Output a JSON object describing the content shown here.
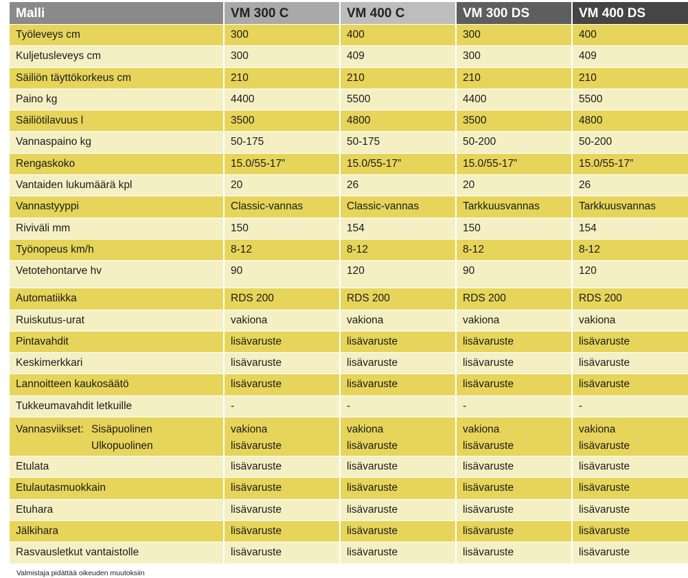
{
  "header": [
    "Malli",
    "VM 300 C",
    "VM 400 C",
    "VM 300 DS",
    "VM 400 DS"
  ],
  "rows": [
    {
      "label": "Työleveys cm",
      "values": [
        "300",
        "400",
        "300",
        "400"
      ]
    },
    {
      "label": "Kuljetusleveys cm",
      "values": [
        "300",
        "409",
        "300",
        "409"
      ]
    },
    {
      "label": "Säiliön täyttökorkeus cm",
      "values": [
        "210",
        "210",
        "210",
        "210"
      ]
    },
    {
      "label": "Paino kg",
      "values": [
        "4400",
        "5500",
        "4400",
        "5500"
      ]
    },
    {
      "label": "Säiliötilavuus l",
      "values": [
        "3500",
        "4800",
        "3500",
        "4800"
      ]
    },
    {
      "label": "Vannaspaino kg",
      "values": [
        "50-175",
        "50-175",
        "50-200",
        "50-200"
      ]
    },
    {
      "label": "Rengaskoko",
      "values": [
        "15.0/55-17”",
        "15.0/55-17”",
        "15.0/55-17”",
        "15.0/55-17”"
      ]
    },
    {
      "label": "Vantaiden lukumäärä kpl",
      "values": [
        "20",
        "26",
        "20",
        "26"
      ]
    },
    {
      "label": "Vannastyyppi",
      "values": [
        "Classic-vannas",
        "Classic-vannas",
        "Tarkkuusvannas",
        "Tarkkuusvannas"
      ]
    },
    {
      "label": "Riviväli mm",
      "values": [
        "150",
        "154",
        "150",
        "154"
      ]
    },
    {
      "label": "Työnopeus km/h",
      "values": [
        "8-12",
        "8-12",
        "8-12",
        "8-12"
      ]
    },
    {
      "label": "Vetotehontarve hv",
      "values": [
        "90",
        "120",
        "90",
        "120"
      ]
    },
    {
      "label": "Automatiikka",
      "values": [
        "RDS 200",
        "RDS 200",
        "RDS 200",
        "RDS 200"
      ]
    },
    {
      "label": "Ruiskutus-urat",
      "values": [
        "vakiona",
        "vakiona",
        "vakiona",
        "vakiona"
      ]
    },
    {
      "label": "Pintavahdit",
      "values": [
        "lisävaruste",
        "lisävaruste",
        "lisävaruste",
        "lisävaruste"
      ]
    },
    {
      "label": "Keskimerkkari",
      "values": [
        "lisävaruste",
        "lisävaruste",
        "lisävaruste",
        "lisävaruste"
      ]
    },
    {
      "label": "Lannoitteen kaukosäätö",
      "values": [
        "lisävaruste",
        "lisävaruste",
        "lisävaruste",
        "lisävaruste"
      ]
    },
    {
      "label": "Tukkeumavahdit letkuille",
      "values": [
        "-",
        "-",
        "-",
        "-"
      ]
    }
  ],
  "vannasviikset": {
    "label": "Vannasviikset:",
    "sub1": "Sisäpuolinen",
    "sub2": "Ulkopuolinen",
    "values1": [
      "vakiona",
      "vakiona",
      "vakiona",
      "vakiona"
    ],
    "values2": [
      "lisävaruste",
      "lisävaruste",
      "lisävaruste",
      "lisävaruste"
    ]
  },
  "rows2": [
    {
      "label": "Etulata",
      "values": [
        "lisävaruste",
        "lisävaruste",
        "lisävaruste",
        "lisävaruste"
      ]
    },
    {
      "label": "Etulautasmuokkain",
      "values": [
        "lisävaruste",
        "lisävaruste",
        "lisävaruste",
        "lisävaruste"
      ]
    },
    {
      "label": "Etuhara",
      "values": [
        "lisävaruste",
        "lisävaruste",
        "lisävaruste",
        "lisävaruste"
      ]
    },
    {
      "label": "Jälkihara",
      "values": [
        "lisävaruste",
        "lisävaruste",
        "lisävaruste",
        "lisävaruste"
      ]
    },
    {
      "label": "Rasvausletkut vantaistolle",
      "values": [
        "lisävaruste",
        "lisävaruste",
        "lisävaruste",
        "lisävaruste"
      ]
    }
  ],
  "note": "Valmistaja pidättää oikeuden muutoksiin"
}
